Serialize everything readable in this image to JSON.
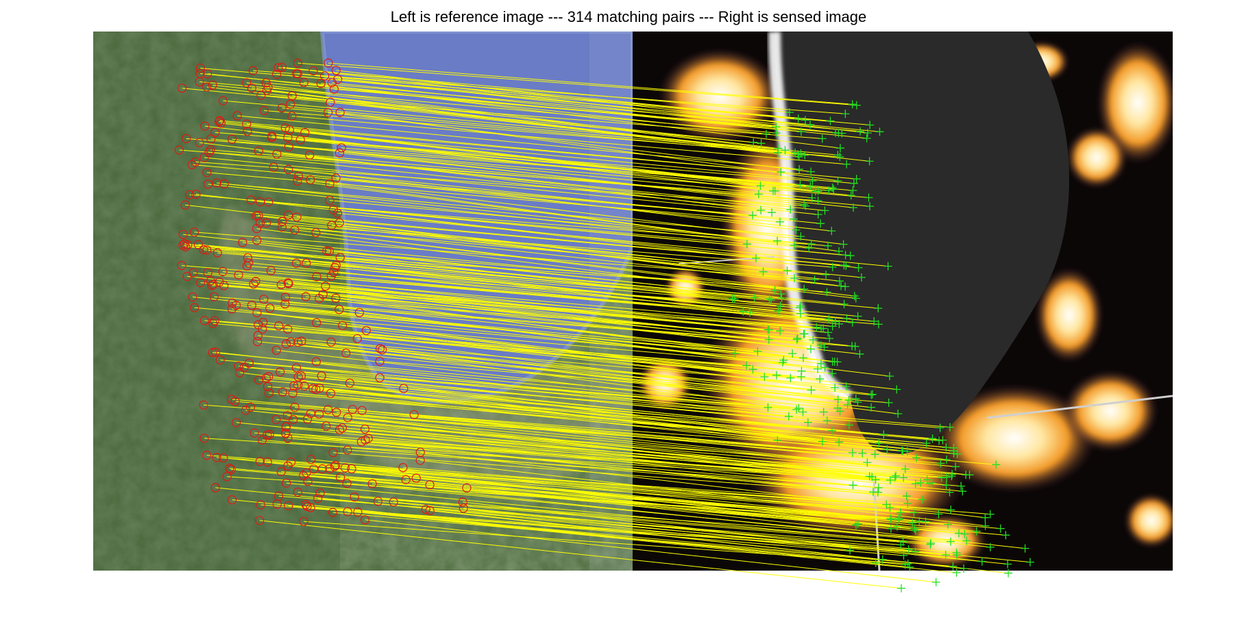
{
  "figure": {
    "title": "Left is reference image --- 314 matching pairs --- Right is sensed image"
  },
  "colors": {
    "match_line": "#ffff00",
    "reference_marker": "#e01a10",
    "sensed_marker": "#22e022",
    "lake_day": "#6878c4",
    "lake_night": "#2a2a2a",
    "land_day": "#4c6a3c",
    "land_night": "#0a0706"
  }
}
